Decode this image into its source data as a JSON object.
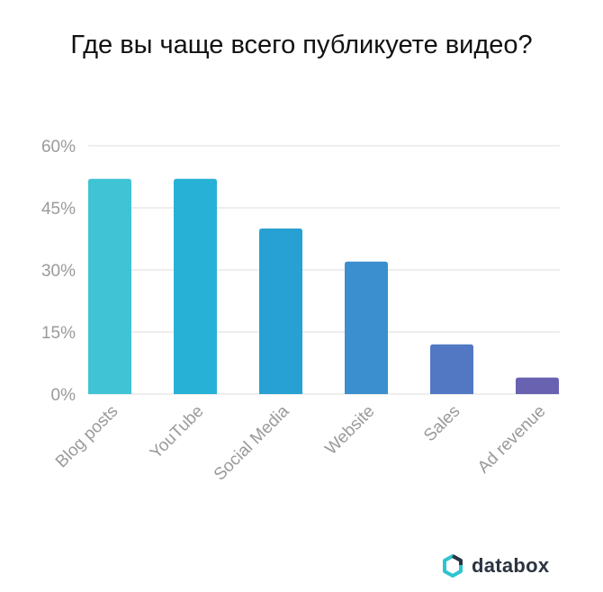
{
  "title": "Где вы чаще всего публикуете видео?",
  "brand": {
    "name": "databox",
    "logo_icon": "databox-logo-icon",
    "logo_color": "#2ec4cf"
  },
  "chart_data": {
    "type": "bar",
    "title": "Где вы чаще всего публикуете видео?",
    "xlabel": "",
    "ylabel": "",
    "categories": [
      "Blog posts",
      "YouTube",
      "Social Media",
      "Website",
      "Sales",
      "Ad revenue"
    ],
    "values": [
      52,
      52,
      40,
      32,
      12,
      4
    ],
    "unit": "%",
    "ylim": [
      0,
      60
    ],
    "yticks": [
      0,
      15,
      30,
      45,
      60
    ],
    "ytick_labels": [
      "0%",
      "15%",
      "30%",
      "45%",
      "60%"
    ],
    "grid": true,
    "legend": "none",
    "colors": [
      "#41c3d6",
      "#28b1d6",
      "#27a1d3",
      "#3b8fce",
      "#5278c4",
      "#6862b0"
    ]
  }
}
